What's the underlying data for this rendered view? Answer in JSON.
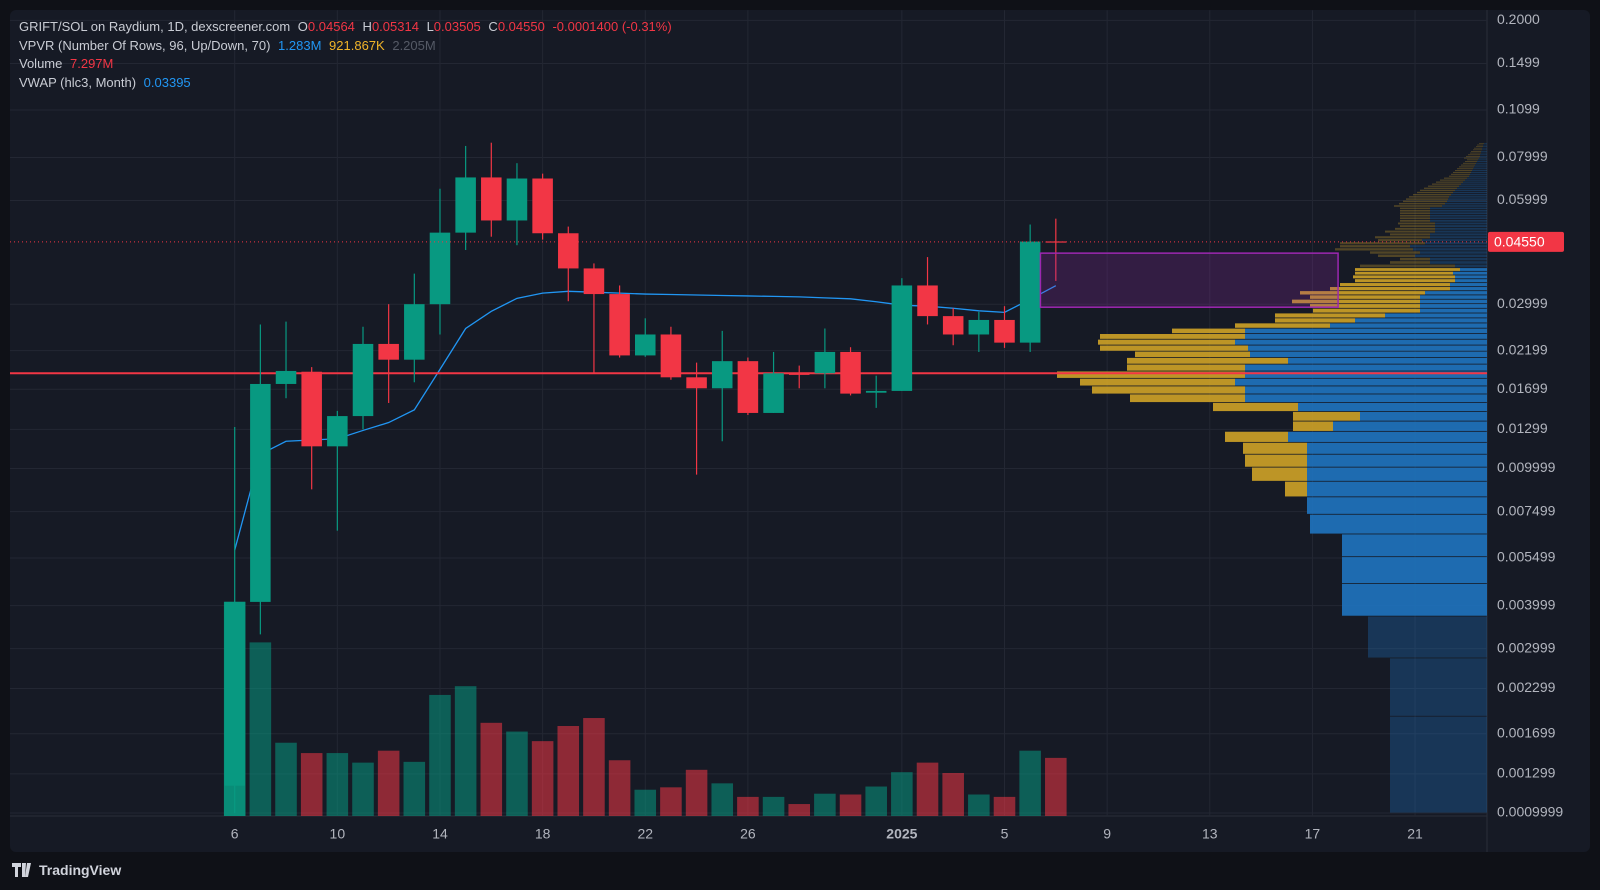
{
  "chart_data": {
    "type": "candlestick",
    "title": "GRIFT/SOL on Raydium, 1D, dexscreener.com",
    "ohlc_keys": [
      "O",
      "H",
      "L",
      "C"
    ],
    "change": "-0.0001400 (-0.31%)",
    "categories": [
      "6",
      null,
      null,
      null,
      "10",
      null,
      null,
      null,
      "14",
      null,
      null,
      null,
      "18",
      null,
      null,
      null,
      "22",
      null,
      null,
      null,
      "26",
      null,
      null,
      null,
      null,
      null,
      "2025",
      null,
      null,
      null,
      "5",
      null,
      null,
      null,
      "9",
      null,
      null,
      null,
      "13",
      null,
      null,
      null,
      "17",
      null,
      null,
      null,
      "21",
      null,
      null
    ],
    "open": [
      0.0012,
      0.0041,
      0.0176,
      0.0191,
      0.0116,
      0.0142,
      0.023,
      0.0207,
      0.03,
      0.0484,
      0.07,
      0.0525,
      0.0695,
      0.0482,
      0.0381,
      0.0321,
      0.0213,
      0.0245,
      0.0184,
      0.0171,
      0.0205,
      0.0145,
      0.0189,
      0.0189,
      0.0218,
      0.0166,
      0.0168,
      0.034,
      0.0277,
      0.0245,
      0.027,
      0.0232,
      0.04564,
      null,
      null,
      null,
      null,
      null,
      null,
      null,
      null,
      null,
      null,
      null,
      null,
      null,
      null,
      null,
      null
    ],
    "high": [
      0.0132,
      0.0262,
      0.0267,
      0.0197,
      0.0147,
      0.0258,
      0.03,
      0.0368,
      0.0649,
      0.0864,
      0.0883,
      0.077,
      0.0718,
      0.0504,
      0.0394,
      0.034,
      0.0273,
      0.0258,
      0.0203,
      0.0251,
      0.021,
      0.0218,
      0.0199,
      0.0255,
      0.0225,
      0.0186,
      0.0357,
      0.0411,
      0.0292,
      0.0285,
      0.0296,
      0.0511,
      0.05314,
      null,
      null,
      null,
      null,
      null,
      null,
      null,
      null,
      null,
      null,
      null,
      null,
      null,
      null,
      null,
      null
    ],
    "low": [
      0.001,
      0.0033,
      0.016,
      0.0087,
      0.0066,
      0.013,
      0.0155,
      0.0178,
      0.0245,
      0.0431,
      0.0471,
      0.0445,
      0.0462,
      0.0306,
      0.019,
      0.021,
      0.0211,
      0.0181,
      0.0096,
      0.012,
      0.0143,
      0.0145,
      0.0171,
      0.0171,
      0.0163,
      0.015,
      0.0168,
      0.0262,
      0.0228,
      0.0218,
      0.0224,
      0.0218,
      0.03505,
      null,
      null,
      null,
      null,
      null,
      null,
      null,
      null,
      null,
      null,
      null,
      null,
      null,
      null,
      null,
      null
    ],
    "close": [
      0.0041,
      0.0176,
      0.0192,
      0.0116,
      0.0142,
      0.023,
      0.0207,
      0.03,
      0.0484,
      0.07,
      0.0525,
      0.0695,
      0.0482,
      0.0381,
      0.0321,
      0.0213,
      0.0245,
      0.0184,
      0.0171,
      0.0205,
      0.0145,
      0.0189,
      0.0187,
      0.0218,
      0.0165,
      0.0168,
      0.034,
      0.0277,
      0.0245,
      0.027,
      0.0232,
      0.0456,
      0.0455,
      null,
      null,
      null,
      null,
      null,
      null,
      null,
      null,
      null,
      null,
      null,
      null,
      null,
      null,
      null,
      null
    ],
    "close_labels": [
      null,
      null,
      null,
      null,
      null,
      null,
      null,
      null,
      null,
      null,
      null,
      null,
      null,
      null,
      null,
      null,
      null,
      null,
      null,
      null,
      null,
      null,
      null,
      null,
      null,
      null,
      null,
      null,
      null,
      null,
      null,
      null,
      "0.04550",
      null,
      null,
      null,
      null,
      null,
      null,
      null,
      null,
      null,
      null,
      null,
      null,
      null,
      null,
      null,
      null
    ],
    "up_color": "#089981",
    "down_color": "#f23645",
    "ylim": [
      0.00098,
      0.2141
    ],
    "log_scale": true,
    "grid": true,
    "yticks": [
      {
        "value": 0.2,
        "label": "0.2000"
      },
      0.1499,
      0.1099,
      0.07999,
      0.05999,
      0.02999,
      0.02199,
      0.01699,
      0.01299,
      0.009999,
      0.007499,
      0.005499,
      0.003999,
      0.002999,
      0.002299,
      0.001699,
      0.001299,
      0.0009999
    ],
    "volume": {
      "label": "Volume",
      "values": [
        26.9,
        21.8,
        9.2,
        7.9,
        7.9,
        6.7,
        8.2,
        6.8,
        15.2,
        16.3,
        11.7,
        10.6,
        9.4,
        11.3,
        12.3,
        7.0,
        3.3,
        3.6,
        5.8,
        4.1,
        2.4,
        2.4,
        1.5,
        2.8,
        2.7,
        3.7,
        5.5,
        6.7,
        5.4,
        2.7,
        2.4,
        8.2,
        7.297,
        null,
        null,
        null,
        null,
        null,
        null,
        null,
        null,
        null,
        null,
        null,
        null,
        null,
        null,
        null,
        null
      ],
      "value_labels": [
        null,
        null,
        null,
        null,
        null,
        null,
        null,
        null,
        null,
        null,
        null,
        null,
        null,
        null,
        null,
        null,
        null,
        null,
        null,
        null,
        null,
        null,
        null,
        null,
        null,
        null,
        null,
        null,
        null,
        null,
        null,
        null,
        "7.297M",
        null,
        null,
        null,
        null,
        null,
        null,
        null,
        null,
        null,
        null,
        null,
        null,
        null,
        null,
        null,
        null
      ],
      "vlim": [
        0,
        28
      ]
    },
    "vwap": {
      "label": "VWAP (hlc3, Month)",
      "color": "#2196f3",
      "values": [
        0.0058,
        0.011,
        0.012,
        0.0121,
        0.0122,
        0.0129,
        0.0136,
        0.0148,
        0.0194,
        0.0255,
        0.0286,
        0.0312,
        0.0323,
        0.0327,
        0.0325,
        0.0323,
        0.0321,
        0.032,
        0.0319,
        0.0318,
        0.0317,
        0.0316,
        0.0315,
        0.0313,
        0.0311,
        0.0305,
        0.0298,
        0.0296,
        0.0292,
        0.0287,
        0.0284,
        0.031,
        0.03395,
        null,
        null,
        null,
        null,
        null,
        null,
        null,
        null,
        null,
        null,
        null,
        null,
        null,
        null,
        null,
        null
      ]
    },
    "vpvr": {
      "label": "VPVR (Number Of Rows, 96, Up/Down, 70)",
      "up_label": "1.283M",
      "down_label": "921.867K",
      "total_label": "2.205M",
      "value_area_percent": 70,
      "price_range": [
        0.001,
        0.0883
      ],
      "xlim": [
        0,
        435
      ],
      "up_color": "#1f74c0",
      "down_color": "#cfa327",
      "up": [
        97,
        97,
        119,
        145,
        145,
        145,
        177,
        180,
        180,
        180,
        180,
        180,
        199,
        154,
        127,
        189,
        242,
        242,
        252,
        242,
        242,
        199,
        237,
        239,
        252,
        242,
        242,
        157,
        132,
        102,
        67,
        67,
        67,
        67,
        62,
        37,
        37,
        32,
        32,
        34,
        27,
        32,
        57,
        57,
        72,
        67,
        74,
        77,
        62,
        65,
        57,
        57,
        52,
        52,
        52,
        52,
        57,
        57,
        57,
        57,
        57,
        57,
        45,
        42,
        40,
        39,
        38,
        36,
        34,
        32,
        30,
        28,
        26,
        24,
        22,
        20,
        18,
        17,
        16,
        15,
        14,
        13,
        12,
        11,
        10,
        9,
        8,
        7,
        7,
        6,
        6,
        5,
        5,
        4,
        4,
        3
      ],
      "down": [
        0,
        0,
        0,
        0,
        0,
        0,
        0,
        0,
        22,
        55,
        62,
        64,
        63,
        40,
        67,
        85,
        115,
        153,
        155,
        188,
        118,
        161,
        115,
        148,
        137,
        145,
        73,
        95,
        80,
        110,
        107,
        110,
        128,
        110,
        125,
        120,
        110,
        100,
        102,
        98,
        105,
        95,
        40,
        30,
        37,
        50,
        78,
        70,
        85,
        44,
        55,
        40,
        50,
        40,
        35,
        37,
        30,
        30,
        30,
        30,
        30,
        30,
        48,
        46,
        44,
        42,
        40,
        38,
        36,
        35,
        33,
        31,
        29,
        27,
        25,
        23,
        20,
        19,
        18,
        17,
        16,
        15,
        14,
        13,
        12,
        11,
        15,
        14,
        12,
        11,
        10,
        9,
        8,
        7,
        6,
        5
      ]
    },
    "horizontal_line": {
      "value": 0.0189,
      "color": "#f23645"
    },
    "rectangle": {
      "from": 31.4,
      "to": 43,
      "low": 0.0294,
      "high": 0.0422,
      "color": "#9c27b0"
    },
    "footer": "TradingView"
  }
}
